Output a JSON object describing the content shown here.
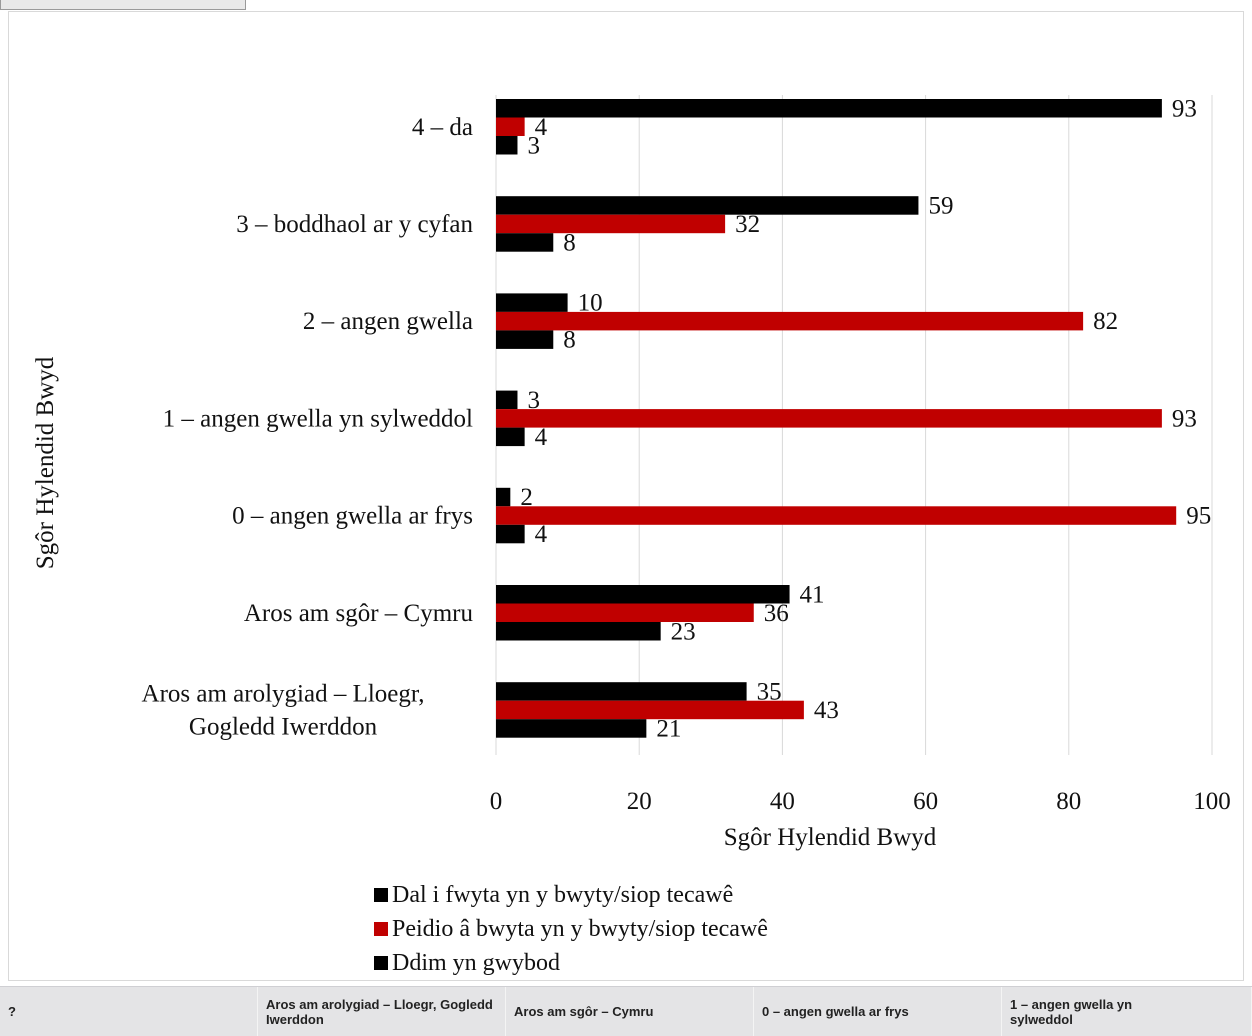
{
  "chart_data": {
    "type": "bar",
    "orientation": "horizontal",
    "categories": [
      "4 – da",
      "3 – boddhaol ar y cyfan",
      "2 – angen gwella",
      "1 – angen gwella yn sylweddol",
      "0 – angen gwella ar frys",
      "Aros am sgôr   – Cymru",
      "Aros am arolygiad   – Lloegr, Gogledd Iwerddon"
    ],
    "category_lines": [
      [
        "4 – da"
      ],
      [
        "3 – boddhaol ar y cyfan"
      ],
      [
        "2 – angen gwella"
      ],
      [
        "1 – angen gwella yn sylweddol"
      ],
      [
        "0 – angen gwella ar frys"
      ],
      [
        "Aros am sgôr   – Cymru"
      ],
      [
        "Aros am arolygiad   – Lloegr,",
        "Gogledd Iwerddon"
      ]
    ],
    "series": [
      {
        "name": "Dal i fwyta yn y bwyty/siop tecawê",
        "color": "#000000",
        "values": [
          93,
          59,
          10,
          3,
          2,
          41,
          35
        ]
      },
      {
        "name": "Peidio â bwyta yn y bwyty/siop tecawê",
        "color": "#c00000",
        "values": [
          4,
          32,
          82,
          93,
          95,
          36,
          43
        ]
      },
      {
        "name": "Ddim yn gwybod",
        "color": "#000000",
        "values": [
          3,
          8,
          8,
          4,
          4,
          23,
          21
        ]
      }
    ],
    "xlabel": "Sgôr Hylendid Bwyd",
    "ylabel": "Sgôr Hylendid Bwyd",
    "xlim": [
      0,
      100
    ],
    "xticks": [
      0,
      20,
      40,
      60,
      80,
      100
    ],
    "grid": "vertical",
    "legend_position": "bottom"
  },
  "table_strip": {
    "headers": [
      "?",
      "Aros am arolygiad – Lloegr, Gogledd Iwerddon",
      "Aros am sgôr – Cymru",
      "0 – angen gwella ar frys",
      "1 – angen gwella yn sylweddol"
    ]
  }
}
